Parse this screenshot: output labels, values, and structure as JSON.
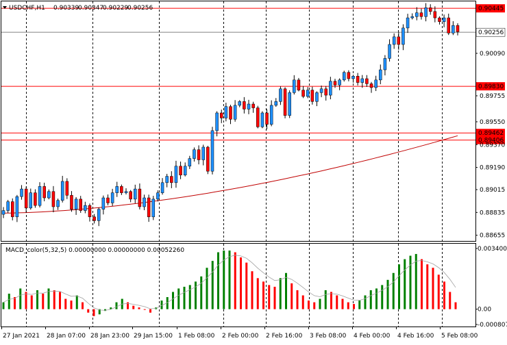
{
  "header": {
    "symbol": "USDCHF,H1",
    "open": "0.90339",
    "high": "0.90347",
    "low": "0.90229",
    "close": "0.90256"
  },
  "indicator": {
    "title": "MACD_color(5,32,5) 0.00000000 0.00000000 0.00052260",
    "axis_labels": [
      "0.0034006",
      "0.00",
      "-0.000807"
    ]
  },
  "price_axis": {
    "labels": [
      "0.90090",
      "0.89755",
      "0.89550",
      "0.89370",
      "0.89190",
      "0.89015",
      "0.88835",
      "0.88655"
    ],
    "hlines": [
      {
        "value": "0.90445",
        "kind": "red"
      },
      {
        "value": "0.90256",
        "kind": "current"
      },
      {
        "value": "0.89830",
        "kind": "red"
      },
      {
        "value": "0.89462",
        "kind": "red"
      },
      {
        "value": "0.89406",
        "kind": "red"
      }
    ]
  },
  "time_axis": {
    "labels": [
      "27 Jan 2021",
      "28 Jan 07:00",
      "28 Jan 23:00",
      "29 Jan 15:00",
      "1 Feb 08:00",
      "2 Feb 00:00",
      "2 Feb 16:00",
      "3 Feb 08:00",
      "4 Feb 00:00",
      "4 Feb 16:00",
      "5 Feb 08:00"
    ]
  },
  "colors": {
    "bull": "#1e90ff",
    "bear": "#ff0000",
    "macd_up": "#008000",
    "macd_down": "#ff0000",
    "ma": "#c00000",
    "grid": "#000000",
    "label_bg": "#ff0000"
  },
  "chart_data": {
    "type": "candlestick",
    "price_range": [
      0.8861,
      0.905
    ],
    "closes": [
      0.8885,
      0.8892,
      0.888,
      0.8896,
      0.8902,
      0.8887,
      0.8899,
      0.8889,
      0.8904,
      0.8895,
      0.89,
      0.8888,
      0.8893,
      0.8908,
      0.8897,
      0.8886,
      0.8894,
      0.8885,
      0.8889,
      0.888,
      0.8877,
      0.8886,
      0.8895,
      0.8891,
      0.8899,
      0.8904,
      0.8899,
      0.89,
      0.8894,
      0.8902,
      0.8888,
      0.8895,
      0.888,
      0.8894,
      0.8899,
      0.8907,
      0.8912,
      0.8907,
      0.892,
      0.8913,
      0.892,
      0.8926,
      0.8933,
      0.8925,
      0.8935,
      0.8916,
      0.8948,
      0.8962,
      0.8958,
      0.8967,
      0.8957,
      0.8968,
      0.8971,
      0.8965,
      0.8969,
      0.8966,
      0.8951,
      0.8962,
      0.8953,
      0.8968,
      0.8971,
      0.8981,
      0.896,
      0.8978,
      0.8988,
      0.898,
      0.8975,
      0.898,
      0.8971,
      0.8978,
      0.8981,
      0.8976,
      0.8987,
      0.8984,
      0.8988,
      0.8994,
      0.8989,
      0.8991,
      0.8986,
      0.8989,
      0.8985,
      0.8982,
      0.8988,
      0.8996,
      0.9005,
      0.9016,
      0.9022,
      0.9016,
      0.9029,
      0.9037,
      0.9038,
      0.9041,
      0.9038,
      0.9045,
      0.9042,
      0.9037,
      0.9034,
      0.9037,
      0.9025,
      0.9031,
      0.9026
    ],
    "ma_start": 0.8883,
    "ma_end": 0.8944,
    "macd_range": [
      -0.000807,
      0.0034006
    ],
    "macd_values": [
      0.0004,
      0.0009,
      0.0007,
      0.0012,
      0.001,
      0.0008,
      0.0011,
      0.0009,
      0.0012,
      0.0011,
      0.001,
      0.0006,
      0.0005,
      0.0008,
      0.0004,
      -0.0002,
      -0.0004,
      -0.0003,
      -0.0001,
      0.0001,
      0.0004,
      0.0006,
      0.0004,
      0.0002,
      0.0001,
      0.0,
      -0.0002,
      0.0001,
      0.0005,
      0.0007,
      0.001,
      0.0012,
      0.0013,
      0.0014,
      0.0016,
      0.0019,
      0.0024,
      0.0028,
      0.0033,
      0.0034,
      0.0034,
      0.0033,
      0.003,
      0.0027,
      0.0022,
      0.0018,
      0.0016,
      0.0014,
      0.0013,
      0.0018,
      0.0021,
      0.0015,
      0.0011,
      0.0008,
      0.0005,
      0.0004,
      0.0006,
      0.0011,
      0.001,
      0.0008,
      0.0006,
      0.0004,
      0.0003,
      0.0005,
      0.0008,
      0.0011,
      0.0012,
      0.0014,
      0.0017,
      0.0021,
      0.0026,
      0.0029,
      0.0031,
      0.0032,
      0.0029,
      0.0026,
      0.0024,
      0.002,
      0.0016,
      0.001,
      0.0004
    ]
  }
}
